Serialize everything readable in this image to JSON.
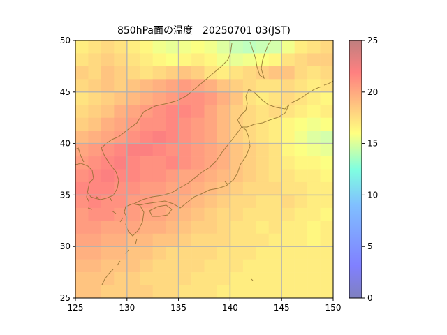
{
  "chart_data": {
    "type": "heatmap",
    "title": "850hPa面の温度　20250701 03(JST)",
    "xlim": [
      125,
      150
    ],
    "ylim": [
      25,
      50
    ],
    "x_ticks": [
      "125",
      "130",
      "135",
      "140",
      "145",
      "150"
    ],
    "y_ticks": [
      "25",
      "30",
      "35",
      "40",
      "45",
      "50"
    ],
    "grid": true,
    "colorbar": {
      "range": [
        0,
        25
      ],
      "ticks": [
        "0",
        "5",
        "10",
        "15",
        "20",
        "25"
      ],
      "colormap": "jet",
      "alpha": 0.5
    },
    "temperature_field": {
      "cell_size_deg": 1.25,
      "lon_start": 125,
      "lat_start": 50,
      "rows": [
        [
          16.5,
          17.0,
          17.5,
          17.0,
          16.5,
          16.0,
          15.0,
          14.5,
          15.0,
          15.5,
          15.0,
          14.0,
          13.0,
          12.5,
          13.0,
          13.5,
          15.0,
          16.5,
          17.0,
          17.5
        ],
        [
          17.0,
          17.5,
          18.0,
          17.5,
          17.0,
          16.5,
          16.0,
          15.5,
          16.0,
          16.5,
          16.0,
          15.0,
          14.5,
          15.0,
          15.5,
          16.0,
          17.0,
          17.5,
          18.0,
          18.0
        ],
        [
          18.0,
          17.5,
          18.5,
          18.0,
          17.5,
          17.0,
          17.5,
          18.0,
          18.5,
          18.0,
          17.0,
          16.5,
          17.0,
          17.5,
          18.0,
          18.5,
          18.5,
          17.5,
          17.0,
          17.5
        ],
        [
          17.5,
          18.0,
          18.5,
          18.0,
          18.5,
          19.0,
          19.5,
          20.0,
          20.5,
          20.0,
          19.5,
          18.5,
          18.0,
          17.5,
          17.0,
          17.0,
          17.5,
          17.0,
          16.5,
          17.0
        ],
        [
          17.0,
          17.5,
          18.0,
          18.5,
          19.0,
          19.5,
          20.0,
          20.5,
          21.0,
          21.0,
          20.5,
          19.5,
          18.5,
          17.0,
          16.5,
          17.0,
          17.5,
          17.0,
          16.5,
          16.0
        ],
        [
          17.5,
          18.0,
          18.5,
          19.5,
          20.0,
          20.5,
          21.0,
          21.5,
          21.5,
          21.0,
          20.0,
          19.0,
          18.0,
          17.5,
          17.0,
          17.5,
          17.0,
          16.5,
          16.0,
          16.5
        ],
        [
          18.0,
          18.5,
          19.5,
          20.0,
          20.5,
          21.0,
          21.0,
          21.5,
          21.0,
          20.5,
          20.0,
          19.0,
          18.0,
          17.5,
          17.0,
          16.5,
          16.0,
          15.5,
          15.0,
          15.5
        ],
        [
          19.0,
          19.5,
          20.0,
          20.5,
          21.0,
          21.5,
          22.0,
          21.5,
          21.0,
          20.5,
          20.0,
          19.0,
          18.0,
          17.5,
          17.0,
          16.5,
          16.0,
          15.0,
          14.0,
          13.5
        ],
        [
          20.0,
          20.5,
          21.0,
          21.5,
          22.0,
          22.0,
          21.5,
          21.0,
          21.0,
          20.5,
          20.0,
          19.5,
          18.5,
          18.0,
          17.5,
          17.0,
          16.0,
          15.5,
          15.0,
          14.5
        ],
        [
          20.5,
          21.0,
          21.5,
          22.0,
          21.5,
          21.0,
          21.0,
          21.5,
          21.0,
          20.5,
          20.0,
          19.5,
          18.5,
          18.0,
          17.5,
          17.0,
          16.5,
          16.0,
          16.0,
          15.5
        ],
        [
          21.0,
          21.5,
          22.0,
          21.5,
          21.5,
          21.0,
          21.0,
          20.5,
          20.0,
          20.0,
          19.5,
          19.0,
          18.5,
          18.0,
          17.5,
          17.0,
          17.0,
          16.5,
          16.5,
          16.0
        ],
        [
          21.5,
          21.5,
          21.5,
          21.0,
          21.0,
          20.5,
          20.5,
          20.0,
          20.0,
          19.5,
          19.0,
          18.5,
          18.0,
          17.5,
          17.5,
          17.5,
          17.0,
          17.0,
          16.5,
          16.5
        ],
        [
          21.0,
          21.5,
          21.0,
          21.0,
          20.5,
          20.5,
          20.0,
          20.0,
          19.5,
          19.0,
          18.5,
          18.0,
          17.5,
          17.5,
          17.0,
          17.0,
          17.5,
          17.0,
          16.5,
          16.5
        ],
        [
          20.5,
          21.0,
          21.0,
          20.5,
          20.5,
          20.0,
          20.0,
          19.5,
          19.0,
          18.5,
          18.0,
          17.5,
          17.5,
          17.0,
          17.0,
          17.0,
          17.0,
          16.5,
          16.5,
          16.0
        ],
        [
          20.5,
          20.5,
          20.0,
          20.0,
          20.0,
          19.5,
          19.5,
          19.0,
          18.5,
          18.0,
          18.0,
          17.5,
          17.0,
          17.0,
          16.5,
          17.0,
          16.5,
          16.5,
          16.0,
          16.5
        ],
        [
          20.0,
          20.0,
          19.5,
          19.5,
          19.0,
          19.0,
          18.5,
          18.5,
          18.0,
          17.5,
          17.5,
          17.5,
          17.0,
          17.0,
          17.0,
          16.5,
          16.5,
          16.5,
          16.0,
          16.5
        ],
        [
          19.5,
          19.5,
          19.0,
          19.0,
          18.5,
          18.5,
          18.0,
          17.5,
          17.5,
          17.5,
          17.5,
          17.0,
          17.0,
          17.0,
          16.5,
          16.5,
          16.5,
          16.5,
          16.5,
          16.5
        ],
        [
          19.0,
          19.0,
          18.5,
          18.5,
          18.5,
          18.0,
          17.5,
          17.5,
          17.5,
          17.5,
          17.0,
          17.0,
          17.0,
          16.5,
          16.5,
          16.5,
          16.5,
          16.5,
          16.5,
          16.5
        ],
        [
          18.5,
          18.5,
          18.5,
          18.0,
          18.0,
          17.5,
          17.5,
          17.5,
          17.5,
          17.0,
          17.0,
          17.0,
          16.5,
          16.5,
          16.5,
          16.5,
          16.5,
          16.5,
          16.5,
          16.5
        ],
        [
          18.5,
          18.5,
          18.0,
          18.0,
          18.0,
          18.0,
          17.5,
          17.5,
          17.0,
          17.0,
          17.0,
          16.5,
          16.5,
          16.5,
          16.5,
          16.5,
          16.5,
          16.5,
          16.5,
          16.5
        ]
      ]
    }
  }
}
